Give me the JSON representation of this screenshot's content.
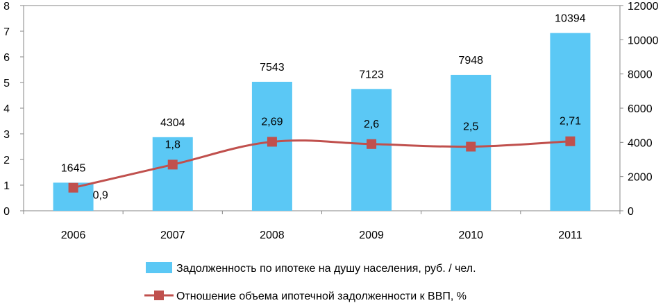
{
  "chart_data": {
    "type": "bar+line",
    "categories": [
      "2006",
      "2007",
      "2008",
      "2009",
      "2010",
      "2011"
    ],
    "series": [
      {
        "name": "Задолженность по ипотеке на душу населения, руб. / чел.",
        "type": "bar",
        "axis": "right",
        "values": [
          1645,
          4304,
          7543,
          7123,
          7948,
          10394
        ],
        "labels": [
          "1645",
          "4304",
          "7543",
          "7123",
          "7948",
          "10394"
        ],
        "color": "#5BC8F5"
      },
      {
        "name": "Отношение объема ипотечной задолженности к ВВП, %",
        "type": "line",
        "axis": "left",
        "values": [
          0.9,
          1.8,
          2.69,
          2.6,
          2.5,
          2.71
        ],
        "labels": [
          "0,9",
          "1,8",
          "2,69",
          "2,6",
          "2,5",
          "2,71"
        ],
        "color": "#C0504D"
      }
    ],
    "y_left": {
      "min": 0,
      "max": 8,
      "ticks": [
        "0",
        "1",
        "2",
        "3",
        "4",
        "5",
        "6",
        "7",
        "8"
      ]
    },
    "y_right": {
      "min": 0,
      "max": 12000,
      "ticks": [
        "0",
        "2000",
        "4000",
        "6000",
        "8000",
        "10000",
        "12000"
      ]
    },
    "grid": false,
    "legend_position": "bottom"
  }
}
